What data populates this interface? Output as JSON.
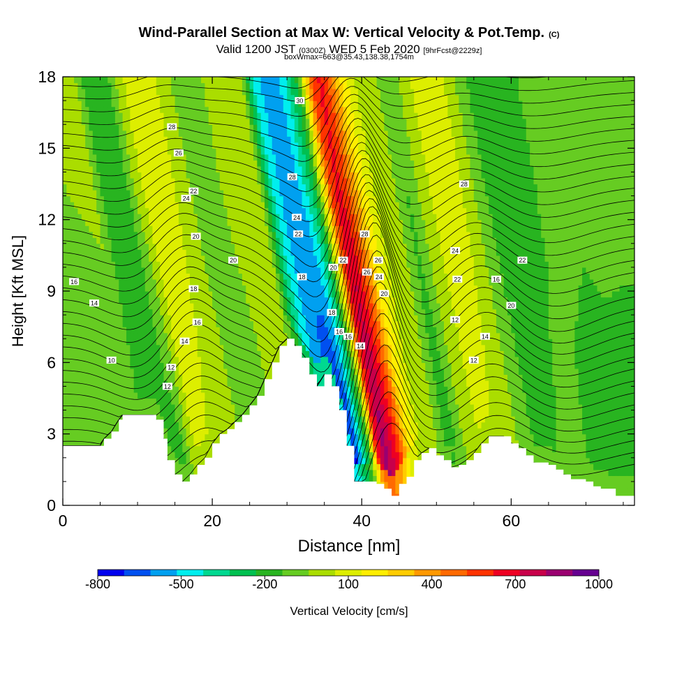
{
  "title": {
    "main": "Wind-Parallel Section at Max W: Vertical Velocity & Pot.Temp.",
    "copyright": "(C)",
    "valid_prefix": "Valid 1200 JST",
    "valid_utc": "(0300Z)",
    "valid_date": "WED 5 Feb 2020",
    "fcst": "[9hrFcst@2229z]",
    "box": "boxWmax=663@35.43,138.38,1754m"
  },
  "chart_data": {
    "type": "heatmap",
    "xlabel": "Distance [nm]",
    "ylabel": "Height [Kft MSL]",
    "xlim": [
      0,
      76.5
    ],
    "ylim": [
      0,
      18
    ],
    "x_ticks": [
      0,
      20,
      40,
      60
    ],
    "y_ticks": [
      0,
      3,
      6,
      9,
      12,
      15,
      18
    ],
    "colorbar": {
      "label": "Vertical Velocity [cm/s]",
      "tick_labels": [
        -800,
        -500,
        -200,
        100,
        400,
        700,
        1000
      ],
      "levels": [
        -800,
        -700,
        -600,
        -500,
        -400,
        -300,
        -200,
        -100,
        0,
        100,
        200,
        300,
        400,
        500,
        600,
        700,
        800,
        900,
        1000
      ],
      "colors": [
        "#0000ee",
        "#0050f0",
        "#00a0f0",
        "#00eeee",
        "#00d890",
        "#00c050",
        "#28b420",
        "#66cc22",
        "#aadd00",
        "#ddee00",
        "#ffee00",
        "#ffcc00",
        "#ff9900",
        "#ff6a00",
        "#ff3300",
        "#ee0022",
        "#c8004a",
        "#9a0070",
        "#660090"
      ]
    },
    "terrain_kft": [
      [
        0,
        2.5
      ],
      [
        5,
        2.5
      ],
      [
        5.5,
        2.8
      ],
      [
        6.5,
        3.1
      ],
      [
        7.5,
        3.6
      ],
      [
        8,
        3.8
      ],
      [
        12,
        3.8
      ],
      [
        12.5,
        3.6
      ],
      [
        13.5,
        2.8
      ],
      [
        14,
        1.9
      ],
      [
        15,
        1.3
      ],
      [
        16,
        1.0
      ],
      [
        17,
        1.3
      ],
      [
        18,
        1.7
      ],
      [
        19,
        2.0
      ],
      [
        20,
        2.6
      ],
      [
        21,
        3.0
      ],
      [
        22,
        3.2
      ],
      [
        23,
        3.5
      ],
      [
        24,
        3.8
      ],
      [
        25,
        4.2
      ],
      [
        26,
        4.6
      ],
      [
        27,
        5.3
      ],
      [
        28,
        6.0
      ],
      [
        29,
        6.7
      ],
      [
        30,
        7.0
      ],
      [
        31,
        6.7
      ],
      [
        32,
        6.2
      ],
      [
        33,
        5.5
      ],
      [
        34,
        5.0
      ],
      [
        35,
        5.5
      ],
      [
        36,
        5.0
      ],
      [
        37,
        4.0
      ],
      [
        38,
        2.5
      ],
      [
        39,
        1.0
      ],
      [
        40,
        1.0
      ],
      [
        42,
        0.9
      ],
      [
        43,
        0.7
      ],
      [
        44,
        0.4
      ],
      [
        45,
        0.9
      ],
      [
        46,
        1.2
      ],
      [
        47,
        1.9
      ],
      [
        48,
        2.2
      ],
      [
        49,
        2.4
      ],
      [
        50,
        2.1
      ],
      [
        51,
        1.9
      ],
      [
        52,
        1.6
      ],
      [
        53,
        1.7
      ],
      [
        54,
        1.9
      ],
      [
        55,
        2.2
      ],
      [
        56,
        2.6
      ],
      [
        57,
        2.9
      ],
      [
        59,
        2.9
      ],
      [
        60,
        2.6
      ],
      [
        61,
        2.4
      ],
      [
        62,
        2.1
      ],
      [
        63,
        1.8
      ],
      [
        65,
        1.7
      ],
      [
        66,
        1.5
      ],
      [
        67,
        1.3
      ],
      [
        68,
        1.1
      ],
      [
        70,
        1.0
      ],
      [
        71,
        0.8
      ],
      [
        72,
        0.7
      ],
      [
        74,
        0.4
      ],
      [
        76.5,
        0.4
      ]
    ],
    "theta_contours": {
      "units": "deg C potential temperature (labels as printed)",
      "labels": [
        "10",
        "12",
        "12",
        "12",
        "12",
        "14",
        "14",
        "14",
        "14",
        "16",
        "16",
        "16",
        "16",
        "16",
        "18",
        "18",
        "18",
        "20",
        "20",
        "20",
        "20",
        "20",
        "22",
        "22",
        "22",
        "22",
        "22",
        "24",
        "24",
        "24",
        "24",
        "26",
        "26",
        "26",
        "28",
        "28",
        "28",
        "28",
        "30"
      ]
    },
    "vertical_velocity_cm_s": {
      "x_nm": [
        0,
        4,
        8,
        10,
        12,
        14,
        16,
        18,
        20,
        22,
        24,
        26,
        28,
        30,
        32,
        34,
        35,
        36,
        37,
        38,
        39,
        40,
        41,
        42,
        43,
        44,
        46,
        48,
        50,
        52,
        54,
        56,
        58,
        60,
        62,
        64,
        66,
        68,
        70,
        72,
        74,
        76.5
      ],
      "w_low_levels": [
        -80,
        -60,
        -80,
        -120,
        -160,
        -120,
        150,
        80,
        40,
        0,
        -50,
        -60,
        50,
        100,
        -300,
        -550,
        -650,
        -750,
        -700,
        -400,
        -100,
        700,
        950,
        800,
        650,
        350,
        80,
        20,
        -180,
        20,
        100,
        80,
        40,
        -40,
        -140,
        -100,
        -80,
        -100,
        -120,
        -140,
        -150,
        -160
      ],
      "w_upper_levels": [
        -40,
        0,
        30,
        -200,
        -180,
        50,
        200,
        180,
        20,
        -20,
        -60,
        40,
        90,
        100,
        -400,
        -600,
        -550,
        -450,
        -300,
        -150,
        300,
        650,
        720,
        600,
        420,
        250,
        60,
        40,
        -100,
        40,
        150,
        200,
        60,
        -60,
        -200,
        -160,
        -120,
        -90,
        -80,
        -80,
        -60,
        -60
      ]
    }
  }
}
